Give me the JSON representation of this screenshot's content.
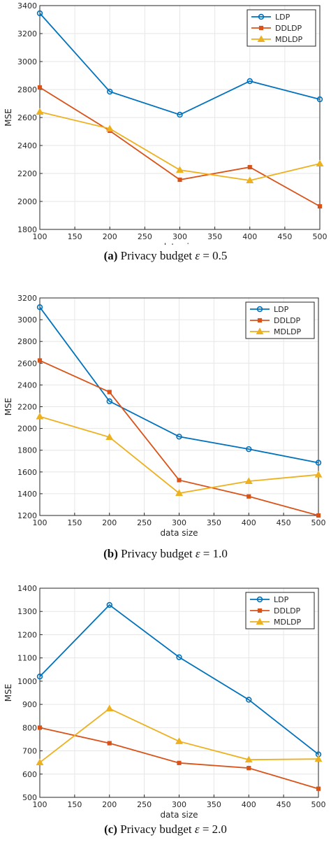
{
  "colors": {
    "LDP": "#0072BD",
    "DDLDP": "#D95319",
    "MDLDP": "#EDB120",
    "axis": "#262626",
    "grid": "#e6e6e6"
  },
  "chart_data": [
    {
      "type": "line",
      "title": "",
      "xlabel": "data size",
      "ylabel": "MSE",
      "x": [
        100,
        200,
        300,
        400,
        500
      ],
      "xlim": [
        100,
        500
      ],
      "ylim": [
        1800,
        3400
      ],
      "xticks": [
        100,
        150,
        200,
        250,
        300,
        350,
        400,
        450,
        500
      ],
      "yticks": [
        1800,
        2000,
        2200,
        2400,
        2600,
        2800,
        3000,
        3200,
        3400
      ],
      "grid": true,
      "legend_position": "top-right",
      "series": [
        {
          "name": "LDP",
          "marker": "circle",
          "values": [
            3345,
            2785,
            2620,
            2860,
            2730
          ]
        },
        {
          "name": "DDLDP",
          "marker": "square",
          "values": [
            2815,
            2505,
            2155,
            2245,
            1965
          ]
        },
        {
          "name": "MDLDP",
          "marker": "triangle",
          "values": [
            2640,
            2520,
            2225,
            2150,
            2270
          ]
        }
      ],
      "caption": {
        "label": "(a)",
        "prefix": "Privacy budget",
        "symbol": "ε",
        "value": "= 0.5"
      }
    },
    {
      "type": "line",
      "title": "",
      "xlabel": "data size",
      "ylabel": "MSE",
      "x": [
        100,
        200,
        300,
        400,
        500
      ],
      "xlim": [
        100,
        500
      ],
      "ylim": [
        1200,
        3200
      ],
      "xticks": [
        100,
        150,
        200,
        250,
        300,
        350,
        400,
        450,
        500
      ],
      "yticks": [
        1200,
        1400,
        1600,
        1800,
        2000,
        2200,
        2400,
        2600,
        2800,
        3000,
        3200
      ],
      "grid": true,
      "legend_position": "top-right",
      "series": [
        {
          "name": "LDP",
          "marker": "circle",
          "values": [
            3115,
            2250,
            1925,
            1810,
            1685
          ]
        },
        {
          "name": "DDLDP",
          "marker": "square",
          "values": [
            2625,
            2335,
            1525,
            1375,
            1200
          ]
        },
        {
          "name": "MDLDP",
          "marker": "triangle",
          "values": [
            2110,
            1920,
            1405,
            1515,
            1575
          ]
        }
      ],
      "caption": {
        "label": "(b)",
        "prefix": "Privacy budget",
        "symbol": "ε",
        "value": "= 1.0"
      }
    },
    {
      "type": "line",
      "title": "",
      "xlabel": "data size",
      "ylabel": "MSE",
      "x": [
        100,
        200,
        300,
        400,
        500
      ],
      "xlim": [
        100,
        500
      ],
      "ylim": [
        500,
        1400
      ],
      "xticks": [
        100,
        150,
        200,
        250,
        300,
        350,
        400,
        450,
        500
      ],
      "yticks": [
        500,
        600,
        700,
        800,
        900,
        1000,
        1100,
        1200,
        1300,
        1400
      ],
      "grid": true,
      "legend_position": "top-right",
      "series": [
        {
          "name": "LDP",
          "marker": "circle",
          "values": [
            1020,
            1328,
            1103,
            920,
            685
          ]
        },
        {
          "name": "DDLDP",
          "marker": "square",
          "values": [
            800,
            733,
            648,
            626,
            537
          ]
        },
        {
          "name": "MDLDP",
          "marker": "triangle",
          "values": [
            650,
            882,
            741,
            662,
            665
          ]
        }
      ],
      "caption": {
        "label": "(c)",
        "prefix": "Privacy budget",
        "symbol": "ε",
        "value": "= 2.0"
      }
    }
  ]
}
